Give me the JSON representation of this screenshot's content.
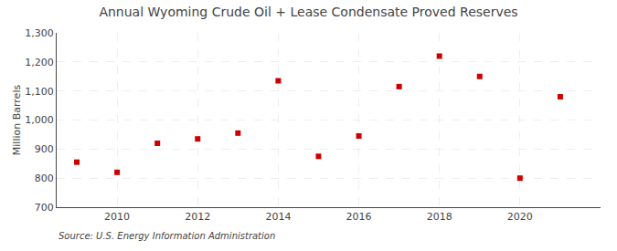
{
  "chart_data": {
    "type": "scatter",
    "title": "Annual Wyoming Crude Oil + Lease Condensate Proved Reserves",
    "y_label": "Million Barrels",
    "annotations": [
      "Source: U.S. Energy Information Administration"
    ],
    "x": [
      2009,
      2010,
      2011,
      2012,
      2013,
      2014,
      2015,
      2016,
      2017,
      2018,
      2019,
      2020,
      2021
    ],
    "values": [
      855,
      820,
      920,
      935,
      955,
      1135,
      875,
      945,
      1115,
      1220,
      1150,
      800,
      1080
    ],
    "color": "#cc0000",
    "marker": "square",
    "xlim": [
      2008.5,
      2022.0
    ],
    "xticks": [
      2010,
      2012,
      2014,
      2016,
      2018,
      2020
    ],
    "ylim": [
      700,
      1300
    ],
    "yticks": [
      700,
      800,
      900,
      {
        "value": 1000,
        "label": "1,000"
      },
      {
        "value": 1100,
        "label": "1,100"
      },
      {
        "value": 1200,
        "label": "1,200"
      },
      {
        "value": 1300,
        "label": "1,300"
      }
    ],
    "grid": true
  }
}
